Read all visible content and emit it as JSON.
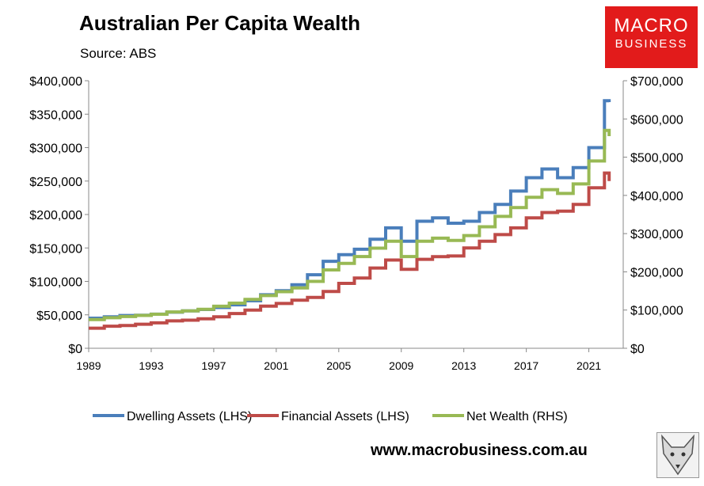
{
  "header": {
    "title": "Australian Per Capita Wealth",
    "source": "Source: ABS"
  },
  "logo": {
    "line1": "MACRO",
    "line2": "BUSINESS",
    "color": "#e21b1b"
  },
  "footer": {
    "website": "www.macrobusiness.com.au"
  },
  "chart_data": {
    "type": "line",
    "grid": false,
    "legend_position": "bottom",
    "x_ticks": [
      "1989",
      "1993",
      "1997",
      "2001",
      "2005",
      "2009",
      "2013",
      "2017",
      "2021"
    ],
    "xlim": [
      1989,
      2023.2
    ],
    "y_left": {
      "ylim": [
        0,
        400000
      ],
      "ticks": [
        "$0",
        "$50,000",
        "$100,000",
        "$150,000",
        "$200,000",
        "$250,000",
        "$300,000",
        "$350,000",
        "$400,000"
      ]
    },
    "y_right": {
      "ylim": [
        0,
        700000
      ],
      "ticks": [
        "$0",
        "$100,000",
        "$200,000",
        "$300,000",
        "$400,000",
        "$500,000",
        "$600,000",
        "$700,000"
      ]
    },
    "series": [
      {
        "name": "Dwelling Assets (LHS)",
        "axis": "left",
        "color": "#4a7ebb",
        "x": [
          1989,
          1990,
          1991,
          1992,
          1993,
          1994,
          1995,
          1996,
          1997,
          1998,
          1999,
          2000,
          2001,
          2002,
          2003,
          2004,
          2005,
          2006,
          2007,
          2008,
          2009,
          2010,
          2011,
          2012,
          2013,
          2014,
          2015,
          2016,
          2017,
          2018,
          2019,
          2020,
          2021,
          2022,
          2022.3
        ],
        "y": [
          45000,
          47000,
          49000,
          49500,
          51000,
          54000,
          56000,
          58000,
          61000,
          65000,
          71000,
          80000,
          86000,
          95000,
          110000,
          130000,
          140000,
          148000,
          163000,
          180000,
          160000,
          190000,
          195000,
          187000,
          190000,
          203000,
          215000,
          235000,
          255000,
          268000,
          255000,
          270000,
          300000,
          370000,
          368000
        ]
      },
      {
        "name": "Financial Assets (LHS)",
        "axis": "left",
        "color": "#be4b48",
        "x": [
          1989,
          1990,
          1991,
          1992,
          1993,
          1994,
          1995,
          1996,
          1997,
          1998,
          1999,
          2000,
          2001,
          2002,
          2003,
          2004,
          2005,
          2006,
          2007,
          2008,
          2009,
          2010,
          2011,
          2012,
          2013,
          2014,
          2015,
          2016,
          2017,
          2018,
          2019,
          2020,
          2021,
          2022,
          2022.3
        ],
        "y": [
          30000,
          33000,
          34000,
          36000,
          38000,
          41000,
          42000,
          44000,
          47000,
          52000,
          57000,
          63000,
          67000,
          72000,
          76000,
          85000,
          97000,
          105000,
          120000,
          132000,
          118000,
          133000,
          137000,
          138000,
          150000,
          160000,
          170000,
          180000,
          195000,
          203000,
          205000,
          215000,
          240000,
          262000,
          250000
        ]
      },
      {
        "name": "Net Wealth (RHS)",
        "axis": "right",
        "color": "#98b954",
        "x": [
          1989,
          1990,
          1991,
          1992,
          1993,
          1994,
          1995,
          1996,
          1997,
          1998,
          1999,
          2000,
          2001,
          2002,
          2003,
          2004,
          2005,
          2006,
          2007,
          2008,
          2009,
          2010,
          2011,
          2012,
          2013,
          2014,
          2015,
          2016,
          2017,
          2018,
          2019,
          2020,
          2021,
          2022,
          2022.3
        ],
        "y": [
          75000,
          80000,
          83000,
          86000,
          89000,
          95000,
          98000,
          102000,
          110000,
          118000,
          128000,
          138000,
          148000,
          158000,
          175000,
          205000,
          222000,
          240000,
          262000,
          280000,
          240000,
          280000,
          288000,
          282000,
          295000,
          318000,
          345000,
          368000,
          395000,
          415000,
          405000,
          430000,
          490000,
          570000,
          555000
        ]
      }
    ]
  }
}
